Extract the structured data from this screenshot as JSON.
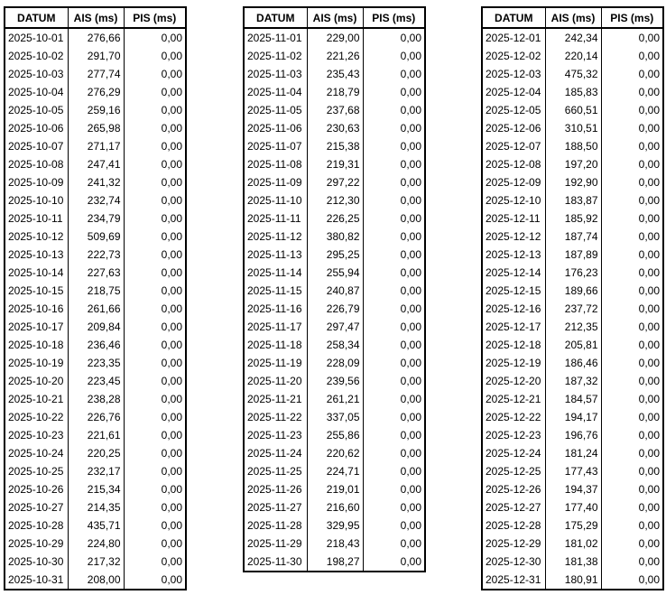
{
  "tables": [
    {
      "headers": [
        "DATUM",
        "AIS (ms)",
        "PIS (ms)"
      ],
      "rows": [
        [
          "2025-10-01",
          "276,66",
          "0,00"
        ],
        [
          "2025-10-02",
          "291,70",
          "0,00"
        ],
        [
          "2025-10-03",
          "277,74",
          "0,00"
        ],
        [
          "2025-10-04",
          "276,29",
          "0,00"
        ],
        [
          "2025-10-05",
          "259,16",
          "0,00"
        ],
        [
          "2025-10-06",
          "265,98",
          "0,00"
        ],
        [
          "2025-10-07",
          "271,17",
          "0,00"
        ],
        [
          "2025-10-08",
          "247,41",
          "0,00"
        ],
        [
          "2025-10-09",
          "241,32",
          "0,00"
        ],
        [
          "2025-10-10",
          "232,74",
          "0,00"
        ],
        [
          "2025-10-11",
          "234,79",
          "0,00"
        ],
        [
          "2025-10-12",
          "509,69",
          "0,00"
        ],
        [
          "2025-10-13",
          "222,73",
          "0,00"
        ],
        [
          "2025-10-14",
          "227,63",
          "0,00"
        ],
        [
          "2025-10-15",
          "218,75",
          "0,00"
        ],
        [
          "2025-10-16",
          "261,66",
          "0,00"
        ],
        [
          "2025-10-17",
          "209,84",
          "0,00"
        ],
        [
          "2025-10-18",
          "236,46",
          "0,00"
        ],
        [
          "2025-10-19",
          "223,35",
          "0,00"
        ],
        [
          "2025-10-20",
          "223,45",
          "0,00"
        ],
        [
          "2025-10-21",
          "238,28",
          "0,00"
        ],
        [
          "2025-10-22",
          "226,76",
          "0,00"
        ],
        [
          "2025-10-23",
          "221,61",
          "0,00"
        ],
        [
          "2025-10-24",
          "220,25",
          "0,00"
        ],
        [
          "2025-10-25",
          "232,17",
          "0,00"
        ],
        [
          "2025-10-26",
          "215,34",
          "0,00"
        ],
        [
          "2025-10-27",
          "214,35",
          "0,00"
        ],
        [
          "2025-10-28",
          "435,71",
          "0,00"
        ],
        [
          "2025-10-29",
          "224,80",
          "0,00"
        ],
        [
          "2025-10-30",
          "217,32",
          "0,00"
        ],
        [
          "2025-10-31",
          "208,00",
          "0,00"
        ]
      ]
    },
    {
      "headers": [
        "DATUM",
        "AIS (ms)",
        "PIS (ms)"
      ],
      "rows": [
        [
          "2025-11-01",
          "229,00",
          "0,00"
        ],
        [
          "2025-11-02",
          "221,26",
          "0,00"
        ],
        [
          "2025-11-03",
          "235,43",
          "0,00"
        ],
        [
          "2025-11-04",
          "218,79",
          "0,00"
        ],
        [
          "2025-11-05",
          "237,68",
          "0,00"
        ],
        [
          "2025-11-06",
          "230,63",
          "0,00"
        ],
        [
          "2025-11-07",
          "215,38",
          "0,00"
        ],
        [
          "2025-11-08",
          "219,31",
          "0,00"
        ],
        [
          "2025-11-09",
          "297,22",
          "0,00"
        ],
        [
          "2025-11-10",
          "212,30",
          "0,00"
        ],
        [
          "2025-11-11",
          "226,25",
          "0,00"
        ],
        [
          "2025-11-12",
          "380,82",
          "0,00"
        ],
        [
          "2025-11-13",
          "295,25",
          "0,00"
        ],
        [
          "2025-11-14",
          "255,94",
          "0,00"
        ],
        [
          "2025-11-15",
          "240,87",
          "0,00"
        ],
        [
          "2025-11-16",
          "226,79",
          "0,00"
        ],
        [
          "2025-11-17",
          "297,47",
          "0,00"
        ],
        [
          "2025-11-18",
          "258,34",
          "0,00"
        ],
        [
          "2025-11-19",
          "228,09",
          "0,00"
        ],
        [
          "2025-11-20",
          "239,56",
          "0,00"
        ],
        [
          "2025-11-21",
          "261,21",
          "0,00"
        ],
        [
          "2025-11-22",
          "337,05",
          "0,00"
        ],
        [
          "2025-11-23",
          "255,86",
          "0,00"
        ],
        [
          "2025-11-24",
          "220,62",
          "0,00"
        ],
        [
          "2025-11-25",
          "224,71",
          "0,00"
        ],
        [
          "2025-11-26",
          "219,01",
          "0,00"
        ],
        [
          "2025-11-27",
          "216,60",
          "0,00"
        ],
        [
          "2025-11-28",
          "329,95",
          "0,00"
        ],
        [
          "2025-11-29",
          "218,43",
          "0,00"
        ],
        [
          "2025-11-30",
          "198,27",
          "0,00"
        ]
      ]
    },
    {
      "headers": [
        "DATUM",
        "AIS (ms)",
        "PIS (ms)"
      ],
      "rows": [
        [
          "2025-12-01",
          "242,34",
          "0,00"
        ],
        [
          "2025-12-02",
          "220,14",
          "0,00"
        ],
        [
          "2025-12-03",
          "475,32",
          "0,00"
        ],
        [
          "2025-12-04",
          "185,83",
          "0,00"
        ],
        [
          "2025-12-05",
          "660,51",
          "0,00"
        ],
        [
          "2025-12-06",
          "310,51",
          "0,00"
        ],
        [
          "2025-12-07",
          "188,50",
          "0,00"
        ],
        [
          "2025-12-08",
          "197,20",
          "0,00"
        ],
        [
          "2025-12-09",
          "192,90",
          "0,00"
        ],
        [
          "2025-12-10",
          "183,87",
          "0,00"
        ],
        [
          "2025-12-11",
          "185,92",
          "0,00"
        ],
        [
          "2025-12-12",
          "187,74",
          "0,00"
        ],
        [
          "2025-12-13",
          "187,89",
          "0,00"
        ],
        [
          "2025-12-14",
          "176,23",
          "0,00"
        ],
        [
          "2025-12-15",
          "189,66",
          "0,00"
        ],
        [
          "2025-12-16",
          "237,72",
          "0,00"
        ],
        [
          "2025-12-17",
          "212,35",
          "0,00"
        ],
        [
          "2025-12-18",
          "205,81",
          "0,00"
        ],
        [
          "2025-12-19",
          "186,46",
          "0,00"
        ],
        [
          "2025-12-20",
          "187,32",
          "0,00"
        ],
        [
          "2025-12-21",
          "184,57",
          "0,00"
        ],
        [
          "2025-12-22",
          "194,17",
          "0,00"
        ],
        [
          "2025-12-23",
          "196,76",
          "0,00"
        ],
        [
          "2025-12-24",
          "181,24",
          "0,00"
        ],
        [
          "2025-12-25",
          "177,43",
          "0,00"
        ],
        [
          "2025-12-26",
          "194,37",
          "0,00"
        ],
        [
          "2025-12-27",
          "177,40",
          "0,00"
        ],
        [
          "2025-12-28",
          "175,29",
          "0,00"
        ],
        [
          "2025-12-29",
          "181,02",
          "0,00"
        ],
        [
          "2025-12-30",
          "181,38",
          "0,00"
        ],
        [
          "2025-12-31",
          "180,91",
          "0,00"
        ]
      ]
    }
  ]
}
